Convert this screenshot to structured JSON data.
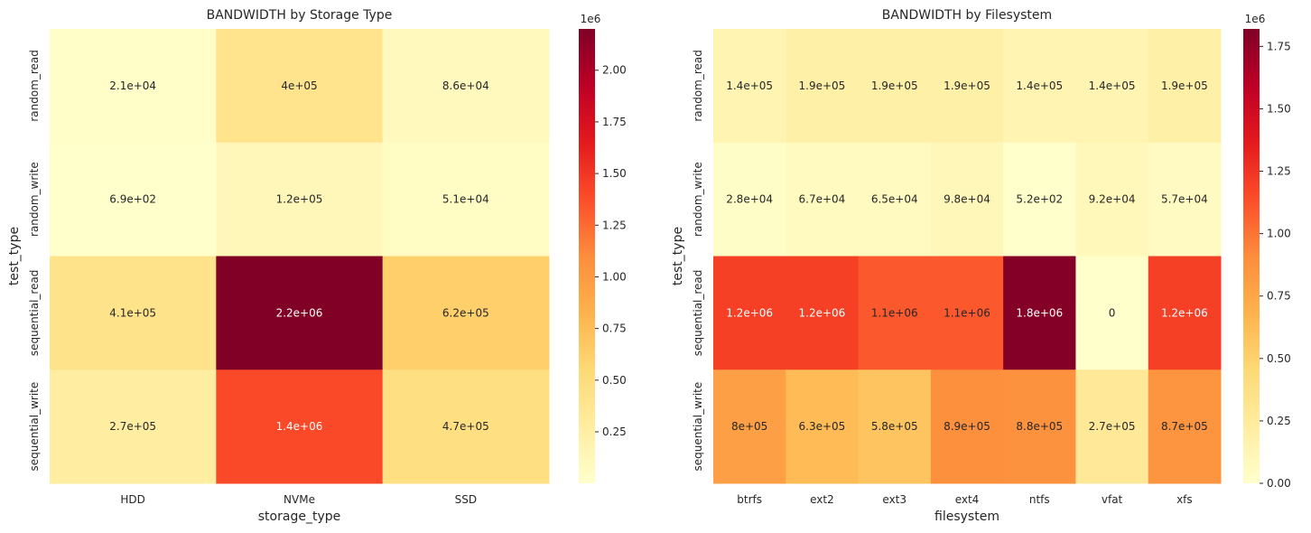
{
  "chart_data": [
    {
      "type": "heatmap",
      "title": "BANDWIDTH by Storage Type",
      "xlabel": "storage_type",
      "ylabel": "test_type",
      "x_categories": [
        "HDD",
        "NVMe",
        "SSD"
      ],
      "y_categories": [
        "random_read",
        "random_write",
        "sequential_read",
        "sequential_write"
      ],
      "values": [
        [
          21000,
          400000,
          86000
        ],
        [
          690,
          120000,
          51000
        ],
        [
          410000,
          2200000,
          620000
        ],
        [
          270000,
          1400000,
          470000
        ]
      ],
      "annotations": [
        [
          "2.1e+04",
          "4e+05",
          "8.6e+04"
        ],
        [
          "6.9e+02",
          "1.2e+05",
          "5.1e+04"
        ],
        [
          "4.1e+05",
          "2.2e+06",
          "6.2e+05"
        ],
        [
          "2.7e+05",
          "1.4e+06",
          "4.7e+05"
        ]
      ],
      "colorbar": {
        "colormap": "YlOrRd",
        "min": 690,
        "max": 2200000,
        "ticks": [
          250000,
          500000,
          750000,
          1000000,
          1250000,
          1500000,
          1750000,
          2000000
        ],
        "tick_labels": [
          "0.25",
          "0.50",
          "0.75",
          "1.00",
          "1.25",
          "1.50",
          "1.75",
          "2.00"
        ],
        "offset_label": "1e6"
      }
    },
    {
      "type": "heatmap",
      "title": "BANDWIDTH by Filesystem",
      "xlabel": "filesystem",
      "ylabel": "test_type",
      "x_categories": [
        "btrfs",
        "ext2",
        "ext3",
        "ext4",
        "ntfs",
        "vfat",
        "xfs"
      ],
      "y_categories": [
        "random_read",
        "random_write",
        "sequential_read",
        "sequential_write"
      ],
      "values": [
        [
          140000,
          190000,
          190000,
          190000,
          140000,
          140000,
          190000
        ],
        [
          28000,
          67000,
          65000,
          98000,
          520,
          92000,
          57000
        ],
        [
          1200000,
          1200000,
          1100000,
          1100000,
          1800000,
          0,
          1200000
        ],
        [
          800000,
          630000,
          580000,
          890000,
          880000,
          270000,
          870000
        ]
      ],
      "annotations": [
        [
          "1.4e+05",
          "1.9e+05",
          "1.9e+05",
          "1.9e+05",
          "1.4e+05",
          "1.4e+05",
          "1.9e+05"
        ],
        [
          "2.8e+04",
          "6.7e+04",
          "6.5e+04",
          "9.8e+04",
          "5.2e+02",
          "9.2e+04",
          "5.7e+04"
        ],
        [
          "1.2e+06",
          "1.2e+06",
          "1.1e+06",
          "1.1e+06",
          "1.8e+06",
          "0",
          "1.2e+06"
        ],
        [
          "8e+05",
          "6.3e+05",
          "5.8e+05",
          "8.9e+05",
          "8.8e+05",
          "2.7e+05",
          "8.7e+05"
        ]
      ],
      "colorbar": {
        "colormap": "YlOrRd",
        "min": 0,
        "max": 1820000,
        "ticks": [
          0,
          250000,
          500000,
          750000,
          1000000,
          1250000,
          1500000,
          1750000
        ],
        "tick_labels": [
          "0.00",
          "0.25",
          "0.50",
          "0.75",
          "1.00",
          "1.25",
          "1.50",
          "1.75"
        ],
        "offset_label": "1e6"
      }
    }
  ]
}
